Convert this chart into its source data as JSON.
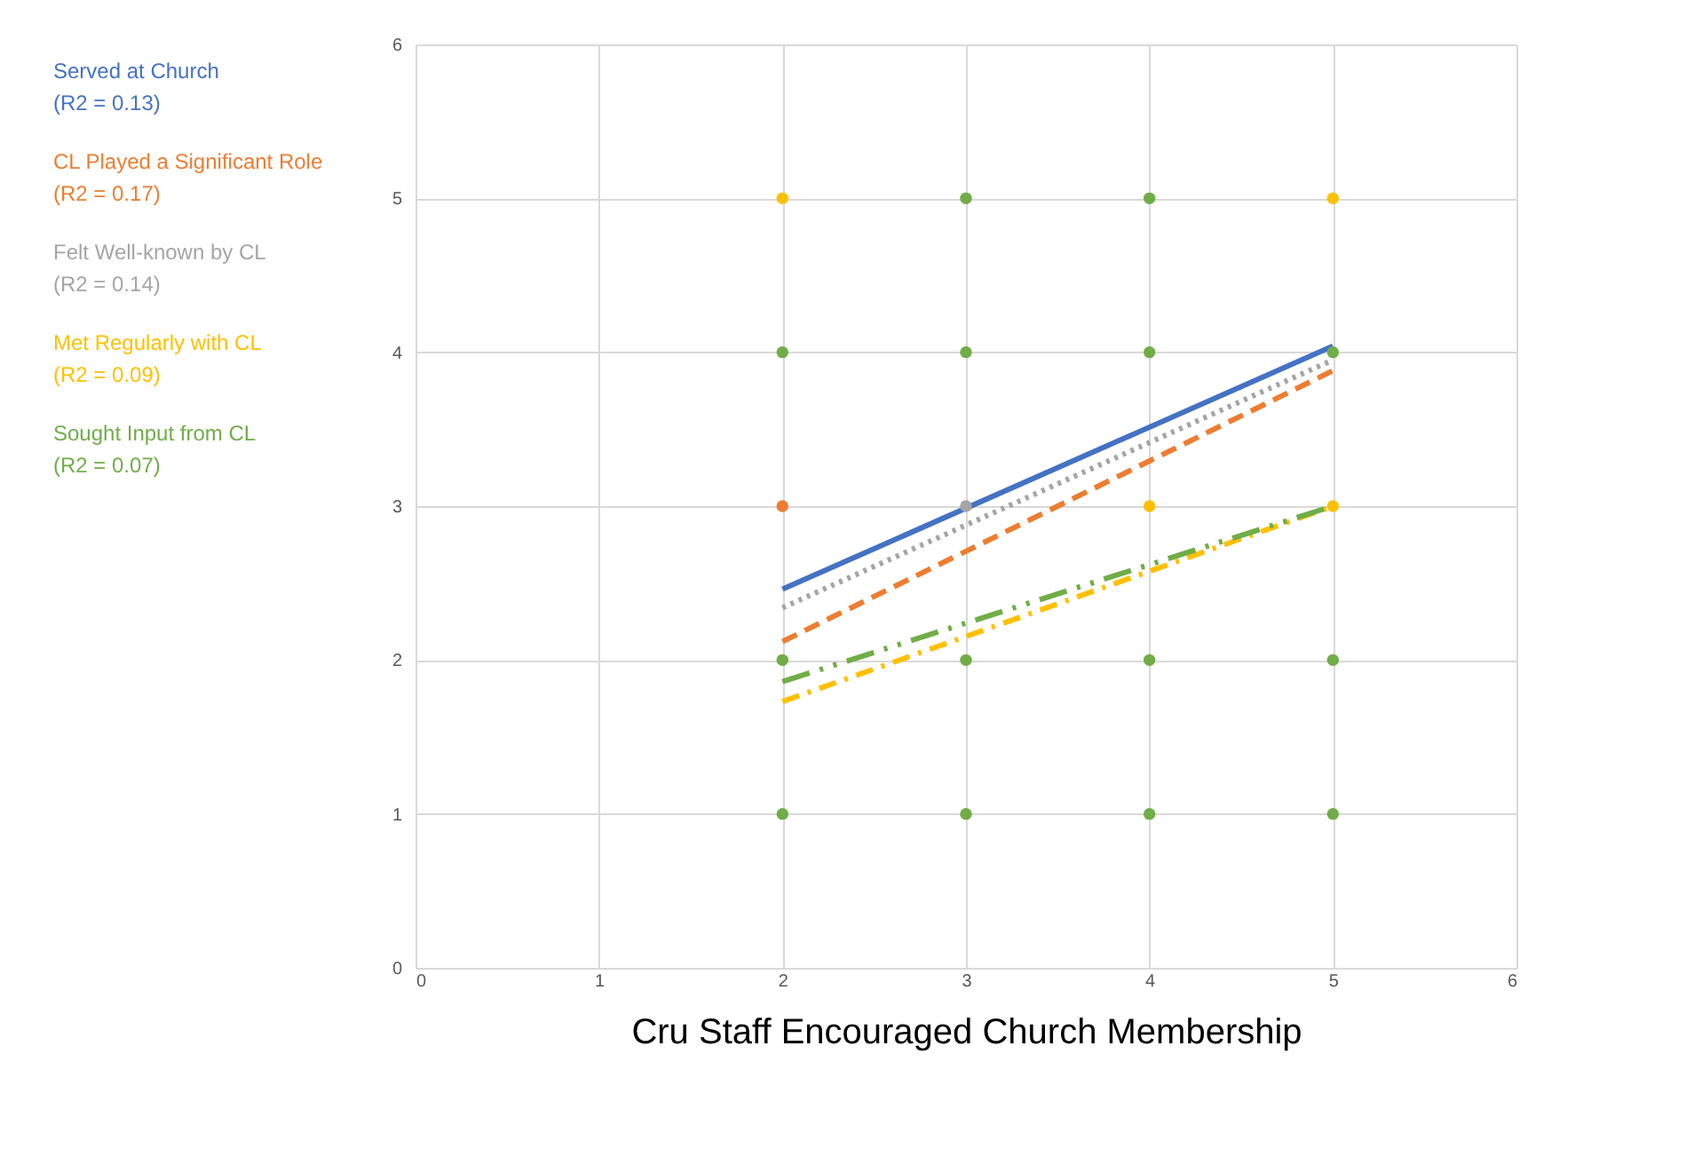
{
  "chart_data": {
    "type": "scatter",
    "xlabel": "Cru Staff Encouraged Church Membership",
    "xlim": [
      0,
      6
    ],
    "ylim": [
      0,
      6
    ],
    "xticks": [
      0,
      1,
      2,
      3,
      4,
      5,
      6
    ],
    "yticks": [
      0,
      1,
      2,
      3,
      4,
      5,
      6
    ],
    "grid": true,
    "legend": "left",
    "series": [
      {
        "marker": "circle",
        "color": "#70ad47",
        "x": [
          3,
          4,
          2,
          3,
          4,
          5,
          2,
          3,
          4,
          5,
          2,
          3,
          4,
          5
        ],
        "values": [
          5,
          5,
          4,
          4,
          4,
          4,
          2,
          2,
          2,
          2,
          1,
          1,
          1,
          1
        ]
      },
      {
        "marker": "circle",
        "color": "#ffc000",
        "x": [
          2,
          5,
          4,
          5
        ],
        "values": [
          5,
          5,
          3,
          3
        ]
      },
      {
        "marker": "circle",
        "color": "#ed7d31",
        "x": [
          2
        ],
        "values": [
          3
        ]
      },
      {
        "marker": "circle",
        "color": "#a5a5a5",
        "x": [
          3
        ],
        "values": [
          3
        ]
      },
      {
        "type": "line",
        "name": "Served at Church\n(R2 = 0.13)",
        "color": "#4472c4",
        "line_style": "solid",
        "x": [
          2,
          5
        ],
        "values": [
          2.46,
          4.04
        ]
      },
      {
        "type": "line",
        "name": "CL Played a Significant Role\n(R2 = 0.17)",
        "color": "#ed7d31",
        "line_style": "dashed",
        "x": [
          2,
          5
        ],
        "values": [
          2.12,
          3.88
        ]
      },
      {
        "type": "line",
        "name": "Felt Well-known by CL\n(R2 = 0.14)",
        "color": "#a5a5a5",
        "line_style": "dotted",
        "x": [
          2,
          5
        ],
        "values": [
          2.34,
          3.95
        ]
      },
      {
        "type": "line",
        "name": "Met Regularly with CL\n(R2 = 0.09)",
        "color": "#ffc000",
        "line_style": "dashdot",
        "x": [
          2,
          5
        ],
        "values": [
          1.73,
          3.0
        ]
      },
      {
        "type": "line",
        "name": "Sought Input from CL\n(R2 = 0.07)",
        "color": "#70ad47",
        "line_style": "longdashdotdot",
        "x": [
          2,
          5
        ],
        "values": [
          1.86,
          3.0
        ]
      }
    ]
  }
}
